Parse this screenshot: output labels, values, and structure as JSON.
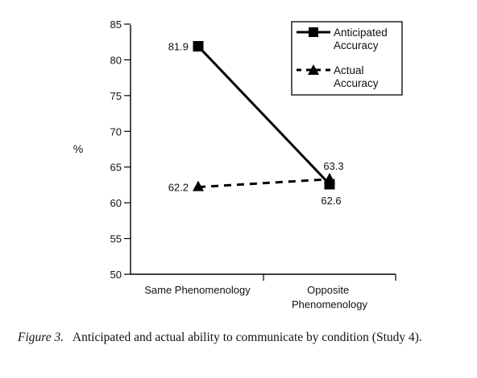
{
  "chart_data": {
    "type": "line",
    "categories": [
      "Same Phenomenology",
      "Opposite Phenomenology"
    ],
    "category_lines": [
      [
        "Same Phenomenology"
      ],
      [
        "Opposite",
        "Phenomenology"
      ]
    ],
    "ylabel": "%",
    "ylim": [
      50,
      85
    ],
    "yticks": [
      "85",
      "80",
      "75",
      "70",
      "65",
      "60",
      "55",
      "50"
    ],
    "series": [
      {
        "name": "Anticipated Accuracy",
        "name_lines": [
          "Anticipated",
          "Accuracy"
        ],
        "values": [
          81.9,
          62.6
        ],
        "value_labels": [
          "81.9",
          "62.6"
        ],
        "marker": "square",
        "line_style": "solid"
      },
      {
        "name": "Actual Accuracy",
        "name_lines": [
          "Actual",
          "Accuracy"
        ],
        "values": [
          62.2,
          63.3
        ],
        "value_labels": [
          "62.2",
          "63.3"
        ],
        "marker": "triangle",
        "line_style": "dashed"
      }
    ],
    "legend": "top-right",
    "grid": false
  },
  "caption": {
    "label": "Figure 3.",
    "text": "Anticipated and actual ability to communicate by condition (Study 4)."
  }
}
